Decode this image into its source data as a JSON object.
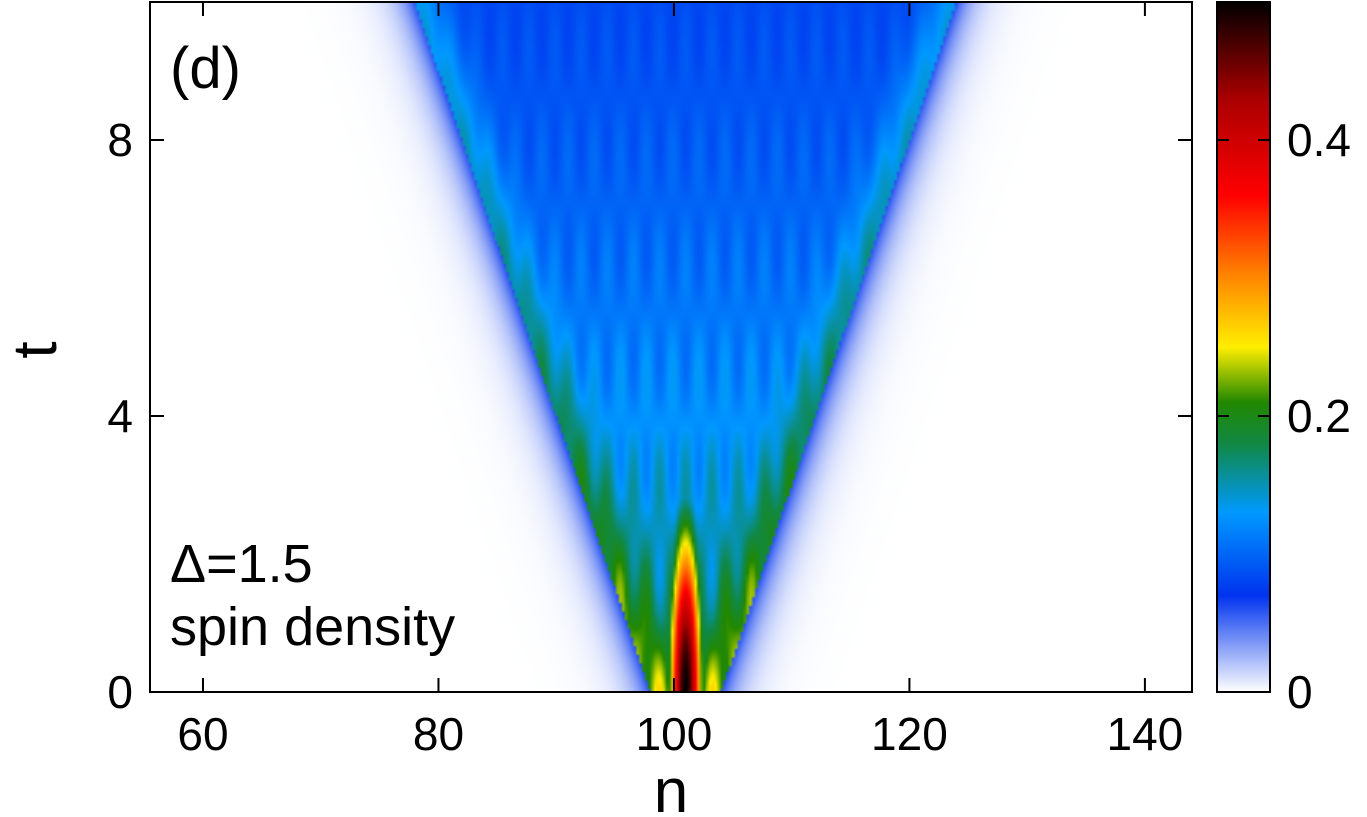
{
  "chart_data": {
    "type": "heatmap",
    "panel_label": "(d)",
    "annotation_lines": [
      "Δ=1.5",
      "spin density"
    ],
    "xlabel": "n",
    "ylabel": "t",
    "xlim": [
      55.5,
      144
    ],
    "ylim": [
      0,
      10
    ],
    "x_ticks": [
      60,
      80,
      100,
      120,
      140
    ],
    "y_ticks": [
      0,
      4,
      8
    ],
    "colorbar": {
      "range": [
        0,
        0.5
      ],
      "ticks": [
        0,
        0.2,
        0.4
      ],
      "colormap": [
        {
          "value": 0.0,
          "color": "#ffffff"
        },
        {
          "value": 0.07,
          "color": "#0033ee"
        },
        {
          "value": 0.13,
          "color": "#0099ff"
        },
        {
          "value": 0.18,
          "color": "#118844"
        },
        {
          "value": 0.21,
          "color": "#228800"
        },
        {
          "value": 0.25,
          "color": "#ffee00"
        },
        {
          "value": 0.3,
          "color": "#ff8800"
        },
        {
          "value": 0.36,
          "color": "#ff0000"
        },
        {
          "value": 0.43,
          "color": "#aa0000"
        },
        {
          "value": 0.5,
          "color": "#000000"
        }
      ]
    },
    "model": {
      "center_site": 101,
      "light_cone_speed": 2.0,
      "cone_width_at_t0": 3,
      "initial_peak": 0.5
    }
  }
}
